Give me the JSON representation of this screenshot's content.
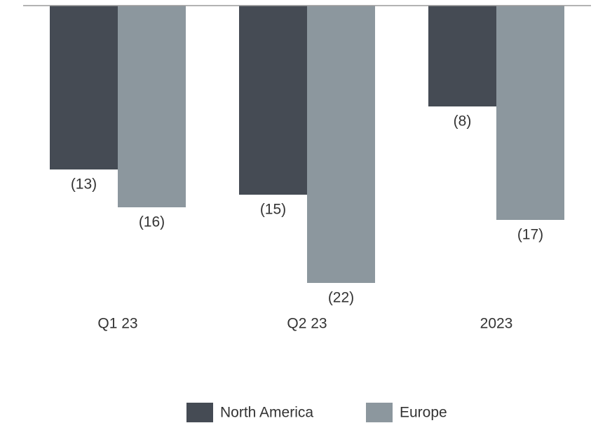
{
  "chart_data": {
    "type": "bar",
    "categories": [
      "Q1 23",
      "Q2 23",
      "2023"
    ],
    "series": [
      {
        "name": "North America",
        "color": "#454b54",
        "values": [
          -13,
          -15,
          -8
        ],
        "value_labels": [
          "(13)",
          "(15)",
          "(8)"
        ]
      },
      {
        "name": "Europe",
        "color": "#8c979e",
        "values": [
          -16,
          -22,
          -17
        ],
        "value_labels": [
          "(16)",
          "(22)",
          "(17)"
        ]
      }
    ],
    "ylim": [
      -22,
      0
    ]
  }
}
